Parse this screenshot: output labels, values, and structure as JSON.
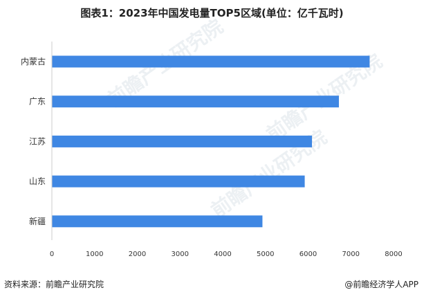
{
  "header": {
    "title": "图表1：2023年中国发电量TOP5区域(单位：亿千瓦时)"
  },
  "footer": {
    "source": "资料来源：前瞻产业研究院",
    "brand": "@前瞻经济学人APP"
  },
  "watermark": {
    "text": "前瞻产业研究院"
  },
  "chart_data": {
    "type": "bar",
    "orientation": "horizontal",
    "title": "图表1：2023年中国发电量TOP5区域(单位：亿千瓦时)",
    "categories": [
      "内蒙古",
      "广东",
      "江苏",
      "山东",
      "新疆"
    ],
    "values": [
      7440,
      6720,
      6090,
      5920,
      4930
    ],
    "xlim": [
      0,
      8000
    ],
    "xticks": [
      0,
      1000,
      2000,
      3000,
      4000,
      5000,
      6000,
      7000,
      8000
    ],
    "bar_color": "#3f87e3",
    "grid": false
  }
}
